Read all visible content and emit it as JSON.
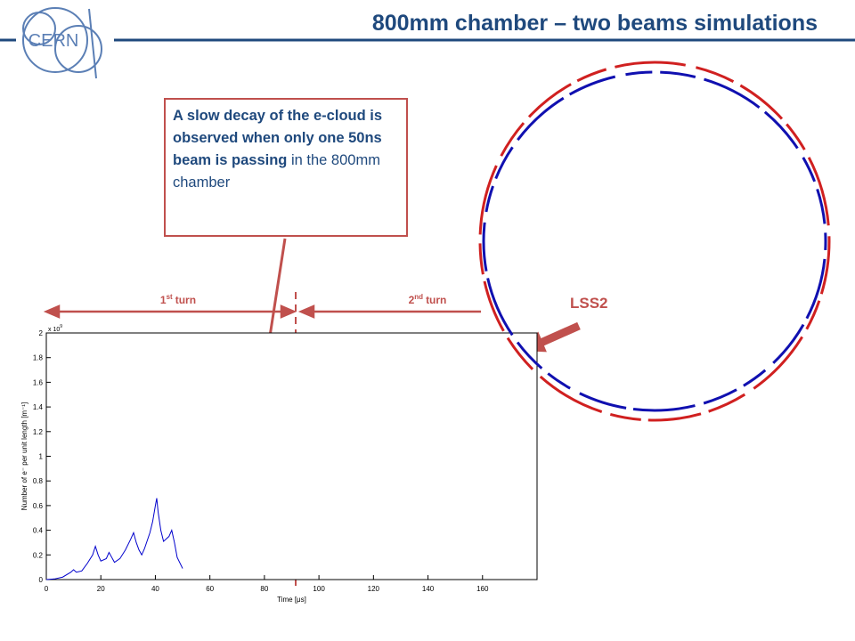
{
  "slide": {
    "title": "800mm chamber – two beams simulations",
    "logo_text": "CERN",
    "callout": {
      "bold": "A slow decay of the e-cloud is observed when only one 50ns beam is passing",
      "normal": "in the 800mm chamber"
    },
    "turns": [
      {
        "base": "1",
        "sup": "st",
        "rest": "turn"
      },
      {
        "base": "2",
        "sup": "nd",
        "rest": "turn"
      }
    ],
    "location_label": "LSS2"
  },
  "chart_data": {
    "type": "line",
    "xlabel": "Time [μs]",
    "ylabel": "Number of e⁻ per unit length [m⁻¹]",
    "y_multiplier": {
      "base": "x 10",
      "exponent": "9"
    },
    "xlim": [
      0,
      180
    ],
    "xticks": [
      0,
      20,
      40,
      60,
      80,
      100,
      120,
      140,
      160
    ],
    "ylim": [
      0,
      2
    ],
    "yticks": [
      0,
      0.2,
      0.4,
      0.6,
      0.8,
      1,
      1.2,
      1.4,
      1.6,
      1.8,
      2
    ],
    "series": [
      {
        "color": "#0000cc",
        "x": [
          0,
          3,
          6,
          9,
          10,
          11,
          13,
          15,
          17,
          18,
          19,
          20,
          22,
          23,
          24,
          25,
          27,
          29,
          31,
          32,
          33,
          34,
          35,
          36,
          38,
          39,
          40,
          40.5,
          41,
          42,
          43,
          45,
          46,
          47,
          48,
          50
        ],
        "values": [
          0,
          0.005,
          0.02,
          0.06,
          0.08,
          0.06,
          0.07,
          0.13,
          0.2,
          0.27,
          0.2,
          0.15,
          0.17,
          0.22,
          0.18,
          0.14,
          0.17,
          0.24,
          0.33,
          0.38,
          0.3,
          0.24,
          0.2,
          0.25,
          0.38,
          0.47,
          0.6,
          0.66,
          0.55,
          0.4,
          0.31,
          0.35,
          0.4,
          0.3,
          0.18,
          0.09
        ]
      }
    ]
  }
}
